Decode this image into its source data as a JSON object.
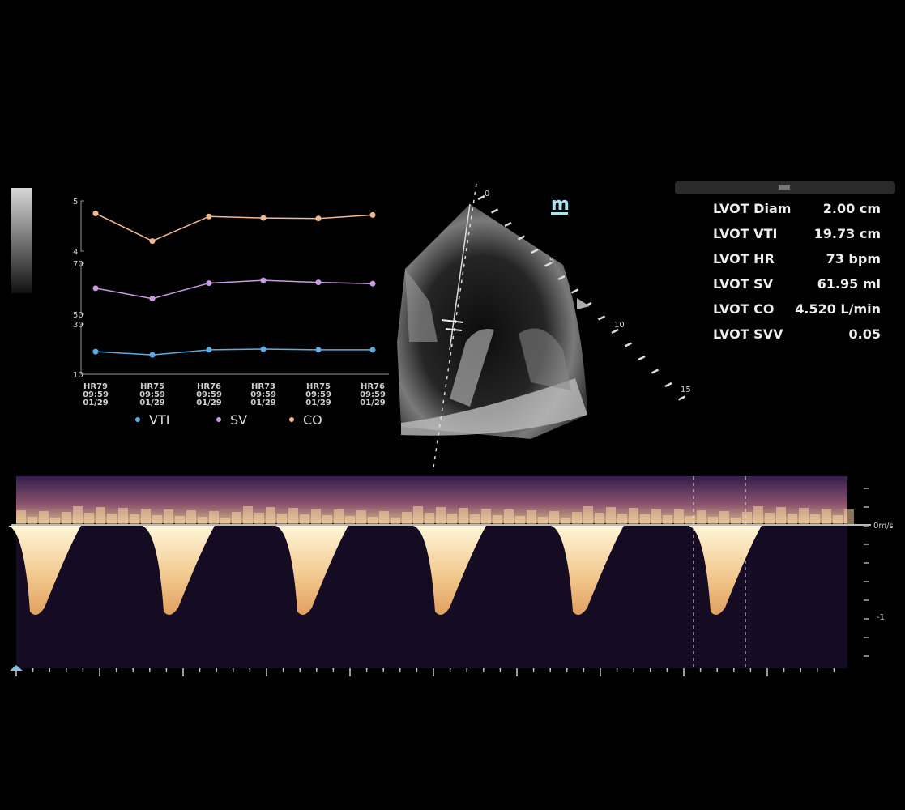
{
  "mode_badge": "m",
  "measurements": [
    {
      "label": "LVOT Diam",
      "value": "2.00 cm"
    },
    {
      "label": "LVOT VTI",
      "value": "19.73 cm"
    },
    {
      "label": "LVOT HR",
      "value": "73 bpm"
    },
    {
      "label": "LVOT SV",
      "value": "61.95 ml"
    },
    {
      "label": "LVOT CO",
      "value": "4.520 L/min"
    },
    {
      "label": "LVOT SVV",
      "value": "0.05"
    }
  ],
  "echo_depth_labels": [
    "0",
    "5",
    "10",
    "15"
  ],
  "doppler": {
    "baseline_label": "0m/s",
    "scale_label": "-1"
  },
  "colors": {
    "vti": "#5aaee8",
    "sv": "#c99be0",
    "co": "#f2b890",
    "doppler_bright": "#fff1c8",
    "doppler_dark": "#2a1640"
  },
  "chart_data": {
    "type": "line",
    "categories": [
      [
        "HR79",
        "09:59",
        "01/29"
      ],
      [
        "HR75",
        "09:59",
        "01/29"
      ],
      [
        "HR76",
        "09:59",
        "01/29"
      ],
      [
        "HR73",
        "09:59",
        "01/29"
      ],
      [
        "HR75",
        "09:59",
        "01/29"
      ],
      [
        "HR76",
        "09:59",
        "01/29"
      ]
    ],
    "panels": [
      {
        "series": "CO",
        "ylim": [
          4,
          5
        ],
        "ticks": [
          "5",
          "4"
        ],
        "values": [
          4.75,
          4.2,
          4.69,
          4.66,
          4.65,
          4.72
        ]
      },
      {
        "series": "SV",
        "ylim": [
          50,
          70
        ],
        "ticks": [
          "70",
          "50"
        ],
        "values": [
          60.2,
          56.1,
          62.2,
          63.3,
          62.5,
          62.0
        ]
      },
      {
        "series": "VTI",
        "ylim": [
          10,
          30
        ],
        "ticks": [
          "30",
          "10"
        ],
        "values": [
          19.0,
          17.7,
          19.7,
          20.0,
          19.7,
          19.7
        ]
      }
    ],
    "legend": [
      "VTI",
      "SV",
      "CO"
    ],
    "legend_position": "bottom"
  }
}
